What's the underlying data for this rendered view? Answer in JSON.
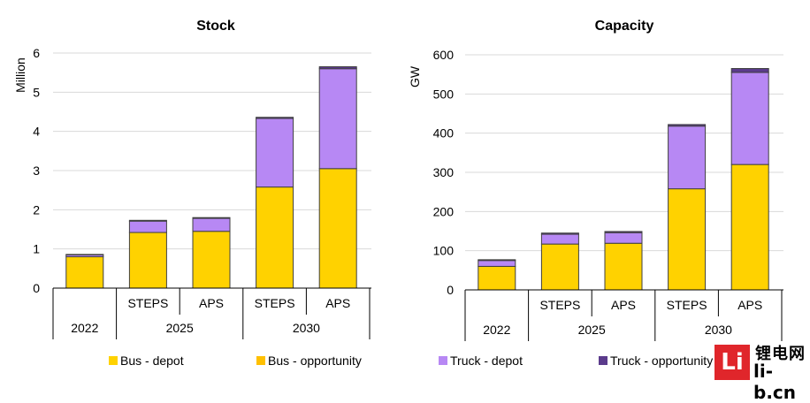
{
  "colors": {
    "bus_depot": "#ffd200",
    "bus_opportunity": "#ffc000",
    "truck_depot": "#b788f4",
    "truck_opportunity": "#5b3b8c",
    "grid": "#d9d9d9",
    "outline": "#404040"
  },
  "legend": {
    "items": [
      {
        "label": "Bus - depot",
        "color": "#ffd200"
      },
      {
        "label": "Bus - opportunity",
        "color": "#ffc000"
      },
      {
        "label": "Truck - depot",
        "color": "#b788f4"
      },
      {
        "label": "Truck - opportunity",
        "color": "#5b3b8c"
      }
    ]
  },
  "watermark": {
    "cn": "锂电网",
    "url": "li-b.cn"
  },
  "chart_data": [
    {
      "type": "bar",
      "stacked": true,
      "title": "Stock",
      "ylabel": "Million",
      "xlabel": "",
      "ylim": [
        0,
        6
      ],
      "yticks": [
        0,
        1,
        2,
        3,
        4,
        5,
        6
      ],
      "grid": true,
      "categories": [
        "",
        "STEPS",
        "APS",
        "STEPS",
        "APS"
      ],
      "groups": [
        {
          "label": "2022",
          "span": 1
        },
        {
          "label": "2025",
          "span": 2
        },
        {
          "label": "2030",
          "span": 2
        }
      ],
      "series": [
        {
          "name": "Bus - depot",
          "values": [
            0.8,
            1.42,
            1.45,
            2.58,
            3.05
          ]
        },
        {
          "name": "Bus - opportunity",
          "values": [
            0.0,
            0.0,
            0.0,
            0.0,
            0.0
          ]
        },
        {
          "name": "Truck - depot",
          "values": [
            0.05,
            0.29,
            0.33,
            1.75,
            2.55
          ]
        },
        {
          "name": "Truck - opportunity",
          "values": [
            0.01,
            0.02,
            0.02,
            0.03,
            0.05
          ]
        }
      ],
      "legend": "bottom"
    },
    {
      "type": "bar",
      "stacked": true,
      "title": "Capacity",
      "ylabel": "GW",
      "xlabel": "",
      "ylim": [
        0,
        600
      ],
      "yticks": [
        0,
        100,
        200,
        300,
        400,
        500,
        600
      ],
      "grid": true,
      "categories": [
        "",
        "STEPS",
        "APS",
        "STEPS",
        "APS"
      ],
      "groups": [
        {
          "label": "2022",
          "span": 1
        },
        {
          "label": "2025",
          "span": 2
        },
        {
          "label": "2030",
          "span": 2
        }
      ],
      "series": [
        {
          "name": "Bus - depot",
          "values": [
            60,
            117,
            119,
            258,
            320
          ]
        },
        {
          "name": "Bus - opportunity",
          "values": [
            0,
            0,
            0,
            0,
            0
          ]
        },
        {
          "name": "Truck - depot",
          "values": [
            15,
            25,
            27,
            160,
            235
          ]
        },
        {
          "name": "Truck - opportunity",
          "values": [
            2,
            3,
            3,
            4,
            10
          ]
        }
      ],
      "legend": "bottom"
    }
  ]
}
